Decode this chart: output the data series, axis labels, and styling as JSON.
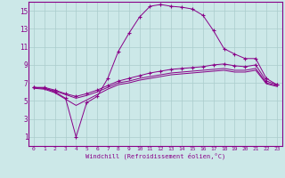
{
  "xlabel": "Windchill (Refroidissement éolien,°C)",
  "bg_color": "#cce8e8",
  "grid_color": "#aacccc",
  "line_color": "#880088",
  "xlim": [
    -0.5,
    23.5
  ],
  "ylim": [
    0,
    16
  ],
  "xticks": [
    0,
    1,
    2,
    3,
    4,
    5,
    6,
    7,
    8,
    9,
    10,
    11,
    12,
    13,
    14,
    15,
    16,
    17,
    18,
    19,
    20,
    21,
    22,
    23
  ],
  "yticks": [
    1,
    3,
    5,
    7,
    9,
    11,
    13,
    15
  ],
  "series": [
    {
      "x": [
        0,
        1,
        2,
        3,
        4,
        5,
        6,
        7,
        8,
        9,
        10,
        11,
        12,
        13,
        14,
        15,
        16,
        17,
        18,
        19,
        20,
        21,
        22,
        23
      ],
      "y": [
        6.5,
        6.5,
        6.2,
        5.8,
        5.5,
        5.8,
        6.2,
        6.7,
        7.2,
        7.5,
        7.8,
        8.1,
        8.3,
        8.5,
        8.6,
        8.7,
        8.8,
        9.0,
        9.1,
        8.9,
        8.8,
        9.0,
        7.2,
        6.8
      ],
      "marker": "+"
    },
    {
      "x": [
        0,
        1,
        2,
        3,
        4,
        5,
        6,
        7,
        8,
        9,
        10,
        11,
        12,
        13,
        14,
        15,
        16,
        17,
        18,
        19,
        20,
        21,
        22,
        23
      ],
      "y": [
        6.5,
        6.4,
        6.1,
        5.7,
        5.3,
        5.6,
        6.0,
        6.5,
        7.0,
        7.2,
        7.5,
        7.7,
        7.9,
        8.1,
        8.2,
        8.3,
        8.4,
        8.5,
        8.6,
        8.4,
        8.4,
        8.6,
        7.0,
        6.7
      ],
      "marker": null
    },
    {
      "x": [
        0,
        1,
        2,
        3,
        4,
        5,
        6,
        7,
        8,
        9,
        10,
        11,
        12,
        13,
        14,
        15,
        16,
        17,
        18,
        19,
        20,
        21,
        22,
        23
      ],
      "y": [
        6.5,
        6.4,
        6.0,
        5.3,
        1.0,
        4.8,
        5.5,
        7.5,
        10.5,
        12.5,
        14.3,
        15.5,
        15.7,
        15.5,
        15.4,
        15.2,
        14.5,
        12.8,
        10.8,
        10.2,
        9.7,
        9.7,
        7.5,
        6.8
      ],
      "marker": "+"
    },
    {
      "x": [
        0,
        1,
        2,
        3,
        4,
        5,
        6,
        7,
        8,
        9,
        10,
        11,
        12,
        13,
        14,
        15,
        16,
        17,
        18,
        19,
        20,
        21,
        22,
        23
      ],
      "y": [
        6.4,
        6.3,
        5.9,
        5.2,
        4.5,
        5.1,
        5.7,
        6.3,
        6.8,
        7.0,
        7.3,
        7.5,
        7.7,
        7.9,
        8.0,
        8.1,
        8.2,
        8.3,
        8.4,
        8.2,
        8.2,
        8.4,
        6.9,
        6.6
      ],
      "marker": null
    }
  ]
}
